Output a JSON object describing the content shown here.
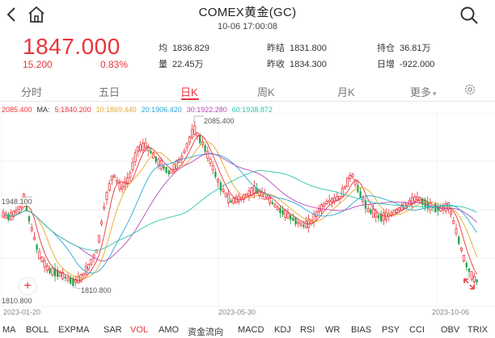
{
  "header": {
    "title": "COMEX黄金(GC)",
    "subtitle": "10-06 17:00:08"
  },
  "quote": {
    "price": "1847.000",
    "change": "15.200",
    "change_pct": "0.83%",
    "stats": [
      {
        "label": "均",
        "value": "1836.829"
      },
      {
        "label": "量",
        "value": "22.45万"
      },
      {
        "label": "昨结",
        "value": "1831.800"
      },
      {
        "label": "昨收",
        "value": "1834.300"
      },
      {
        "label": "持仓",
        "value": "36.81万"
      },
      {
        "label": "日增",
        "value": "-922.000"
      }
    ]
  },
  "tabs": [
    {
      "label": "分时"
    },
    {
      "label": "五日"
    },
    {
      "label": "日K"
    },
    {
      "label": "周K"
    },
    {
      "label": "月K"
    },
    {
      "label": "更多"
    }
  ],
  "active_tab": "日K",
  "ma_legend": [
    {
      "text": "2085.400",
      "color": "#e8343c"
    },
    {
      "text": "MA:",
      "color": "#333333"
    },
    {
      "text": "5:1840.200",
      "color": "#e8343c"
    },
    {
      "text": "10:1869.440",
      "color": "#e8a92a"
    },
    {
      "text": "20:1906.420",
      "color": "#2aa6d8"
    },
    {
      "text": "30:1922.280",
      "color": "#b84ab8"
    },
    {
      "text": "60:1938.872",
      "color": "#2ec5a8"
    }
  ],
  "chart": {
    "labels": {
      "high": "2085.400",
      "left_mark": "1948.100",
      "low": "1810.800",
      "bottom_axis": "1810.800"
    },
    "dates": [
      "2023-01-20",
      "2023-05-30",
      "2023-10-06"
    ]
  },
  "indicators": [
    "MA",
    "BOLL",
    "EXPMA",
    "SAR",
    "VOL",
    "AMO",
    "资金流向",
    "MACD",
    "KDJ",
    "RSI",
    "WR",
    "BIAS",
    "PSY",
    "CCI",
    "OBV",
    "TRIX"
  ],
  "active_indicator": "VOL",
  "colors": {
    "up": "#e8343c",
    "down": "#1a9e3c",
    "accent": "#e8343c"
  }
}
